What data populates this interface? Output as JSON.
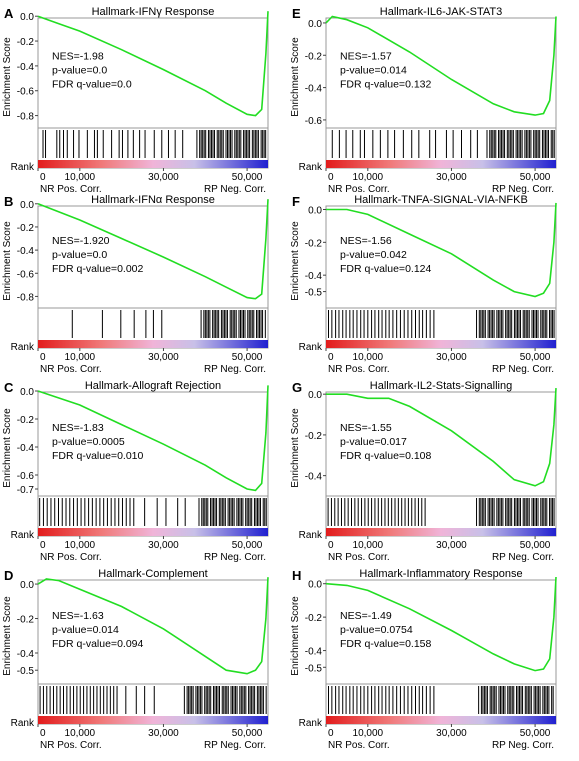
{
  "common": {
    "ylabel": "Enrichment Score",
    "rank_label": "Rank",
    "x_ticks": [
      {
        "value": 0,
        "label": "0"
      },
      {
        "value": 10000,
        "label": "10,000"
      },
      {
        "value": 30000,
        "label": "30,000"
      },
      {
        "value": 50000,
        "label": "50,000"
      }
    ],
    "x_max": 55000,
    "left_label": "NR Pos. Corr.",
    "right_label": "RP Neg. Corr.",
    "curve_color": "#22dd22",
    "heat_colors": [
      "#e21c1c",
      "#f07a7a",
      "#f0b4d8",
      "#c8c0e8",
      "#2020d0"
    ]
  },
  "chart_data": [
    {
      "type": "line",
      "panel": "A",
      "title": "Hallmark-IFNγ Response",
      "stats": [
        "NES=-1.98",
        "p-value=0.0",
        "FDR q-value=0.0"
      ],
      "ylim": [
        -0.9,
        0.05
      ],
      "yticks": [
        0.0,
        -0.2,
        -0.4,
        -0.6,
        -0.8
      ],
      "ytick_labels": [
        "0.0",
        "-0.2",
        "-0.4",
        "-0.6",
        "-0.8"
      ],
      "x": [
        0,
        5000,
        10000,
        20000,
        30000,
        40000,
        45000,
        50000,
        52000,
        53500,
        54500,
        55000
      ],
      "y": [
        0.0,
        -0.06,
        -0.12,
        -0.27,
        -0.43,
        -0.6,
        -0.7,
        -0.79,
        -0.8,
        -0.75,
        -0.3,
        0.04
      ],
      "hits_sparse": [
        1200,
        1800,
        4500,
        5200,
        6100,
        7000,
        8500,
        9800,
        11800,
        13500,
        14200,
        15600,
        17600,
        19400,
        20200,
        21500,
        22800,
        24300,
        25600,
        27800,
        29600,
        31200,
        32800,
        34600
      ],
      "hits_dense_range": [
        38000,
        54500
      ]
    },
    {
      "type": "line",
      "panel": "E",
      "title": "Hallmark-IL6-JAK-STAT3",
      "stats": [
        "NES=-1.57",
        "p-value=0.014",
        "FDR q-value=0.132"
      ],
      "ylim": [
        -0.65,
        0.08
      ],
      "yticks": [
        0.0,
        -0.2,
        -0.4,
        -0.6
      ],
      "ytick_labels": [
        "0.0",
        "-0.2",
        "-0.4",
        "-0.6"
      ],
      "x": [
        0,
        1500,
        5000,
        10000,
        20000,
        30000,
        40000,
        45000,
        50000,
        52000,
        53500,
        54500,
        55000
      ],
      "y": [
        0.0,
        0.04,
        0.02,
        -0.03,
        -0.18,
        -0.35,
        -0.5,
        -0.55,
        -0.57,
        -0.56,
        -0.48,
        -0.2,
        0.04
      ],
      "hits_sparse": [
        1500,
        3200,
        4800,
        6400,
        8200,
        9200,
        11200,
        13000,
        14800,
        16400,
        18500,
        20500,
        22200,
        24800,
        26200,
        28800,
        30400,
        32400,
        34600,
        36200
      ],
      "hits_dense_range": [
        38500,
        54500
      ]
    },
    {
      "type": "line",
      "panel": "B",
      "title": "Hallmark-IFNα Response",
      "stats": [
        "NES=-1.920",
        "p-value=0.0",
        "FDR q-value=0.002"
      ],
      "ylim": [
        -0.9,
        0.05
      ],
      "yticks": [
        0.0,
        -0.2,
        -0.4,
        -0.6,
        -0.8
      ],
      "ytick_labels": [
        "0.0",
        "-0.2",
        "-0.4",
        "-0.6",
        "-0.8"
      ],
      "x": [
        0,
        5000,
        10000,
        20000,
        30000,
        40000,
        45000,
        50000,
        52000,
        53500,
        54500,
        55000
      ],
      "y": [
        0.0,
        -0.07,
        -0.14,
        -0.3,
        -0.46,
        -0.63,
        -0.72,
        -0.81,
        -0.82,
        -0.78,
        -0.3,
        0.04
      ],
      "hits_sparse": [
        8200,
        15400,
        19800,
        23000,
        25800,
        27600,
        29600
      ],
      "hits_dense_range": [
        39000,
        54500
      ]
    },
    {
      "type": "line",
      "panel": "F",
      "title": "Hallmark-TNFA-SIGNAL-VIA-NFKB",
      "stats": [
        "NES=-1.56",
        "p-value=0.042",
        "FDR q-value=0.124"
      ],
      "ylim": [
        -0.6,
        0.07
      ],
      "yticks": [
        0.0,
        -0.2,
        -0.4,
        -0.5
      ],
      "ytick_labels": [
        "0.0",
        "-0.2",
        "-0.4",
        "-0.5"
      ],
      "x": [
        0,
        5000,
        10000,
        20000,
        30000,
        40000,
        45000,
        50000,
        52000,
        53500,
        54500,
        55000
      ],
      "y": [
        0.0,
        0.0,
        -0.03,
        -0.15,
        -0.27,
        -0.43,
        -0.5,
        -0.53,
        -0.51,
        -0.45,
        -0.2,
        0.04
      ],
      "hits_sparse": [
        600,
        1400,
        2300,
        3100,
        4000,
        4800,
        5700,
        6500,
        7400,
        8300,
        9100,
        10000,
        10900,
        11700,
        12600,
        13400,
        14300,
        15100,
        16000,
        16900,
        17800,
        18700,
        19600,
        20500,
        21400,
        22300,
        23100,
        24000,
        24900,
        25800
      ],
      "hits_dense_range": [
        36000,
        54500
      ]
    },
    {
      "type": "line",
      "panel": "C",
      "title": "Hallmark-Allograft Rejection",
      "stats": [
        "NES=-1.83",
        "p-value=0.0005",
        "FDR q-value=0.010"
      ],
      "ylim": [
        -0.75,
        0.05
      ],
      "yticks": [
        0.0,
        -0.2,
        -0.4,
        -0.6,
        -0.7
      ],
      "ytick_labels": [
        "0.0",
        "-0.2",
        "-0.4",
        "-0.6",
        "-0.7"
      ],
      "x": [
        0,
        5000,
        10000,
        20000,
        30000,
        40000,
        45000,
        50000,
        52000,
        53500,
        54500,
        55000
      ],
      "y": [
        0.0,
        -0.05,
        -0.1,
        -0.24,
        -0.38,
        -0.53,
        -0.62,
        -0.7,
        -0.71,
        -0.66,
        -0.3,
        0.04
      ],
      "hits_sparse": [
        400,
        1300,
        2200,
        3100,
        4000,
        4900,
        5800,
        6700,
        7600,
        8500,
        9400,
        10300,
        11200,
        12100,
        13000,
        13900,
        14800,
        15700,
        16600,
        17500,
        18400,
        19300,
        20200,
        21100,
        22000,
        22900,
        25500,
        28500,
        30600,
        33400,
        35200
      ],
      "hits_dense_range": [
        38500,
        54500
      ]
    },
    {
      "type": "line",
      "panel": "G",
      "title": "Hallmark-IL2-Stats-Signalling",
      "stats": [
        "NES=-1.55",
        "p-value=0.017",
        "FDR q-value=0.108"
      ],
      "ylim": [
        -0.5,
        0.05
      ],
      "yticks": [
        0.0,
        -0.2,
        -0.4
      ],
      "ytick_labels": [
        "0.0",
        "-0.2",
        "-0.4"
      ],
      "x": [
        0,
        5000,
        10000,
        15000,
        20000,
        30000,
        40000,
        45000,
        50000,
        52000,
        53500,
        54500,
        55000
      ],
      "y": [
        0.0,
        0.0,
        -0.02,
        -0.02,
        -0.06,
        -0.18,
        -0.33,
        -0.42,
        -0.45,
        -0.43,
        -0.34,
        -0.15,
        0.03
      ],
      "hits_sparse": [
        500,
        1300,
        2100,
        2900,
        3700,
        4500,
        5300,
        6100,
        6900,
        7700,
        8500,
        9300,
        10100,
        10900,
        11700,
        12500,
        13300,
        14100,
        14900,
        15700,
        16500,
        17300,
        18100,
        18900,
        19700,
        20500,
        21300,
        22100,
        22900,
        23700
      ],
      "hits_dense_range": [
        36000,
        54500
      ]
    },
    {
      "type": "line",
      "panel": "D",
      "title": "Hallmark-Complement",
      "stats": [
        "NES=-1.63",
        "p-value=0.014",
        "FDR q-value=0.094"
      ],
      "ylim": [
        -0.58,
        0.07
      ],
      "yticks": [
        0.0,
        -0.2,
        -0.4,
        -0.5
      ],
      "ytick_labels": [
        "0.0",
        "-0.2",
        "-0.4",
        "-0.5"
      ],
      "x": [
        0,
        2000,
        5000,
        10000,
        20000,
        30000,
        40000,
        45000,
        50000,
        52000,
        53500,
        54500,
        55000
      ],
      "y": [
        0.0,
        0.03,
        0.02,
        -0.03,
        -0.13,
        -0.26,
        -0.42,
        -0.5,
        -0.52,
        -0.5,
        -0.45,
        -0.2,
        0.04
      ],
      "hits_sparse": [
        500,
        1300,
        2100,
        2900,
        3700,
        4500,
        5300,
        6100,
        6900,
        7700,
        8500,
        9300,
        10100,
        10900,
        11700,
        12500,
        13300,
        14100,
        14900,
        15700,
        16500,
        17300,
        18100,
        18900,
        21000,
        23500,
        25500,
        27800
      ],
      "hits_dense_range": [
        35000,
        54500
      ]
    },
    {
      "type": "line",
      "panel": "H",
      "title": "Hallmark-Inflammatory Response",
      "stats": [
        "NES=-1.49",
        "p-value=0.0754",
        "FDR q-value=0.158"
      ],
      "ylim": [
        -0.6,
        0.07
      ],
      "yticks": [
        0.0,
        -0.2,
        -0.4,
        -0.5
      ],
      "ytick_labels": [
        "0.0",
        "-0.2",
        "-0.4",
        "-0.5"
      ],
      "x": [
        0,
        5000,
        10000,
        20000,
        30000,
        40000,
        45000,
        50000,
        52000,
        53500,
        54500,
        55000
      ],
      "y": [
        0.0,
        -0.01,
        -0.04,
        -0.15,
        -0.28,
        -0.42,
        -0.48,
        -0.52,
        -0.51,
        -0.45,
        -0.2,
        0.04
      ],
      "hits_sparse": [
        600,
        1400,
        2300,
        3100,
        4000,
        4800,
        5700,
        6500,
        7400,
        8300,
        9100,
        10000,
        10900,
        11700,
        12600,
        13400,
        14300,
        15100,
        16000,
        16900,
        17800,
        18700,
        19600,
        20500,
        21400,
        22300,
        23100,
        24000,
        24900,
        25800
      ],
      "hits_dense_range": [
        36500,
        54500
      ]
    }
  ]
}
